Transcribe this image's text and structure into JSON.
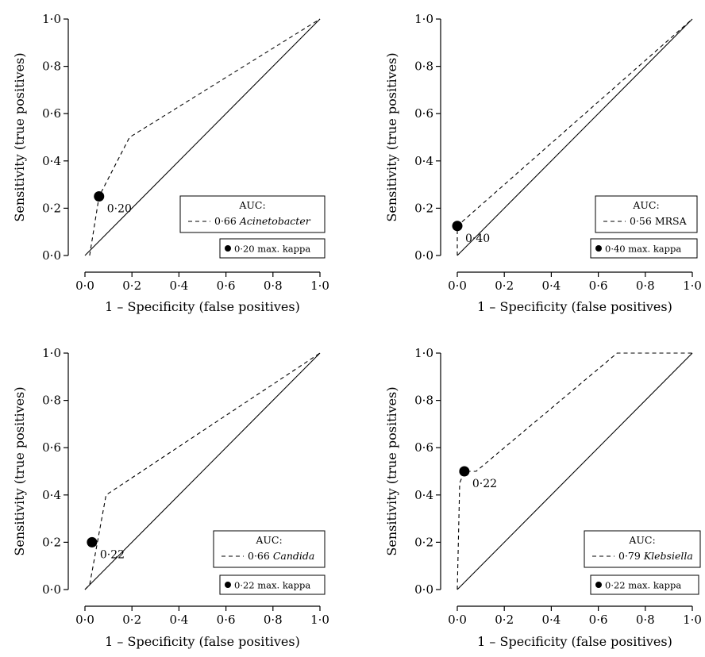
{
  "chart_data": [
    {
      "type": "line",
      "xlabel": "1 – Specificity (false positives)",
      "ylabel": "Sensitivity (true positives)",
      "xlim": [
        0,
        1
      ],
      "ylim": [
        0,
        1
      ],
      "xticks": [
        "0·0",
        "0·2",
        "0·4",
        "0·6",
        "0·8",
        "1·0"
      ],
      "yticks": [
        "0·0",
        "0·2",
        "0·4",
        "0·6",
        "0·8",
        "1·0"
      ],
      "series": [
        {
          "name": "0·66 Acinetobacter",
          "style": "dashed",
          "x": [
            0.02,
            0.06,
            0.19,
            1.0
          ],
          "y": [
            0.0,
            0.25,
            0.5,
            1.0
          ]
        },
        {
          "style": "solid",
          "x": [
            0.0,
            1.0
          ],
          "y": [
            0.0,
            1.0
          ]
        }
      ],
      "marker": {
        "x": 0.06,
        "y": 0.25,
        "label": "0·20"
      },
      "legend": {
        "title": "AUC:",
        "prefix": "0·66",
        "organism": "Acinetobacter",
        "italic": true,
        "kappa": "0·20 max. kappa",
        "placement": "bottom-right"
      }
    },
    {
      "type": "line",
      "xlabel": "1 – Specificity (false positives)",
      "ylabel": "Sensitivity (true positives)",
      "xlim": [
        0,
        1
      ],
      "ylim": [
        0,
        1
      ],
      "xticks": [
        "0·0",
        "0·2",
        "0·4",
        "0·6",
        "0·8",
        "1·0"
      ],
      "yticks": [
        "0·0",
        "0·2",
        "0·4",
        "0·6",
        "0·8",
        "1·0"
      ],
      "series": [
        {
          "name": "0·56 MRSA",
          "style": "dashed",
          "x": [
            0.0,
            0.0,
            1.0
          ],
          "y": [
            0.0,
            0.125,
            1.0
          ]
        },
        {
          "style": "solid",
          "x": [
            0.0,
            1.0
          ],
          "y": [
            0.0,
            1.0
          ]
        }
      ],
      "marker": {
        "x": 0.0,
        "y": 0.125,
        "label": "0·40"
      },
      "legend": {
        "title": "AUC:",
        "prefix": "0·56",
        "organism": "MRSA",
        "italic": false,
        "kappa": "0·40 max. kappa",
        "placement": "bottom-right"
      }
    },
    {
      "type": "line",
      "xlabel": "1 – Specificity (false positives)",
      "ylabel": "Sensitivity (true positives)",
      "xlim": [
        0,
        1
      ],
      "ylim": [
        0,
        1
      ],
      "xticks": [
        "0·0",
        "0·2",
        "0·4",
        "0·6",
        "0·8",
        "1·0"
      ],
      "yticks": [
        "0·0",
        "0·2",
        "0·4",
        "0·6",
        "0·8",
        "1·0"
      ],
      "series": [
        {
          "name": "0·66 Candida",
          "style": "dashed",
          "x": [
            0.0,
            0.02,
            0.09,
            1.0
          ],
          "y": [
            0.0,
            0.02,
            0.4,
            1.0
          ]
        },
        {
          "style": "solid",
          "x": [
            0.0,
            1.0
          ],
          "y": [
            0.0,
            1.0
          ]
        }
      ],
      "marker": {
        "x": 0.03,
        "y": 0.2,
        "label": "0·22"
      },
      "legend": {
        "title": "AUC:",
        "prefix": "0·66",
        "organism": "Candida",
        "italic": true,
        "kappa": "0·22 max. kappa",
        "placement": "bottom-right"
      }
    },
    {
      "type": "line",
      "xlabel": "1 – Specificity (false positives)",
      "ylabel": "Sensitivity (true positives)",
      "xlim": [
        0,
        1
      ],
      "ylim": [
        0,
        1
      ],
      "xticks": [
        "0·0",
        "0·2",
        "0·4",
        "0·6",
        "0·8",
        "1·0"
      ],
      "yticks": [
        "0·0",
        "0·2",
        "0·4",
        "0·6",
        "0·8",
        "1·0"
      ],
      "series": [
        {
          "name": "0·79 Klebsiella",
          "style": "dashed",
          "x": [
            0.0,
            0.01,
            0.03,
            0.08,
            0.68,
            1.0
          ],
          "y": [
            0.0,
            0.45,
            0.5,
            0.5,
            1.0,
            1.0
          ]
        },
        {
          "style": "solid",
          "x": [
            0.0,
            1.0
          ],
          "y": [
            0.0,
            1.0
          ]
        }
      ],
      "marker": {
        "x": 0.03,
        "y": 0.5,
        "label": "0·22"
      },
      "legend": {
        "title": "AUC:",
        "prefix": "0·79",
        "organism": "Klebsiella",
        "italic": true,
        "kappa": "0·22 max. kappa",
        "placement": "bottom-right"
      }
    }
  ]
}
